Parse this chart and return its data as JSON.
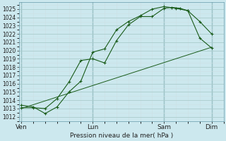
{
  "xlabel": "Pression niveau de la mer( hPa )",
  "bg_color": "#cce8ee",
  "grid_major_color": "#aacccc",
  "grid_minor_color": "#cce0e4",
  "line_color": "#1a5c1a",
  "vline_color": "#6699aa",
  "ylim": [
    1011.5,
    1025.8
  ],
  "yticks": [
    1012,
    1013,
    1014,
    1015,
    1016,
    1017,
    1018,
    1019,
    1020,
    1021,
    1022,
    1023,
    1024,
    1025
  ],
  "xtick_labels": [
    "Ven",
    "Lun",
    "Sam",
    "Dim"
  ],
  "xtick_positions": [
    0,
    3,
    6,
    8
  ],
  "xlim": [
    -0.1,
    8.5
  ],
  "line1_x": [
    0,
    0.5,
    1.0,
    1.5,
    2.0,
    2.5,
    3.0,
    3.5,
    4.0,
    4.5,
    5.0,
    5.5,
    6.0,
    6.33,
    6.67,
    7.0,
    7.5,
    8.0
  ],
  "line1_y": [
    1013.1,
    1013.1,
    1013.0,
    1014.2,
    1016.2,
    1018.8,
    1019.0,
    1018.5,
    1021.2,
    1023.1,
    1024.1,
    1024.1,
    1025.1,
    1025.2,
    1025.1,
    1024.8,
    1023.5,
    1022.0
  ],
  "line2_x": [
    0,
    0.5,
    1.0,
    1.5,
    2.0,
    2.5,
    3.0,
    3.5,
    4.0,
    4.5,
    5.0,
    5.5,
    6.0,
    6.5,
    7.0,
    7.5,
    8.0
  ],
  "line2_y": [
    1013.4,
    1013.2,
    1012.4,
    1013.2,
    1015.0,
    1016.3,
    1019.8,
    1020.2,
    1022.5,
    1023.5,
    1024.2,
    1025.0,
    1025.3,
    1025.1,
    1024.8,
    1021.5,
    1020.3
  ],
  "line3_x": [
    0,
    8.0
  ],
  "line3_y": [
    1013.0,
    1020.4
  ],
  "vline_positions": [
    0,
    3,
    6,
    8
  ]
}
